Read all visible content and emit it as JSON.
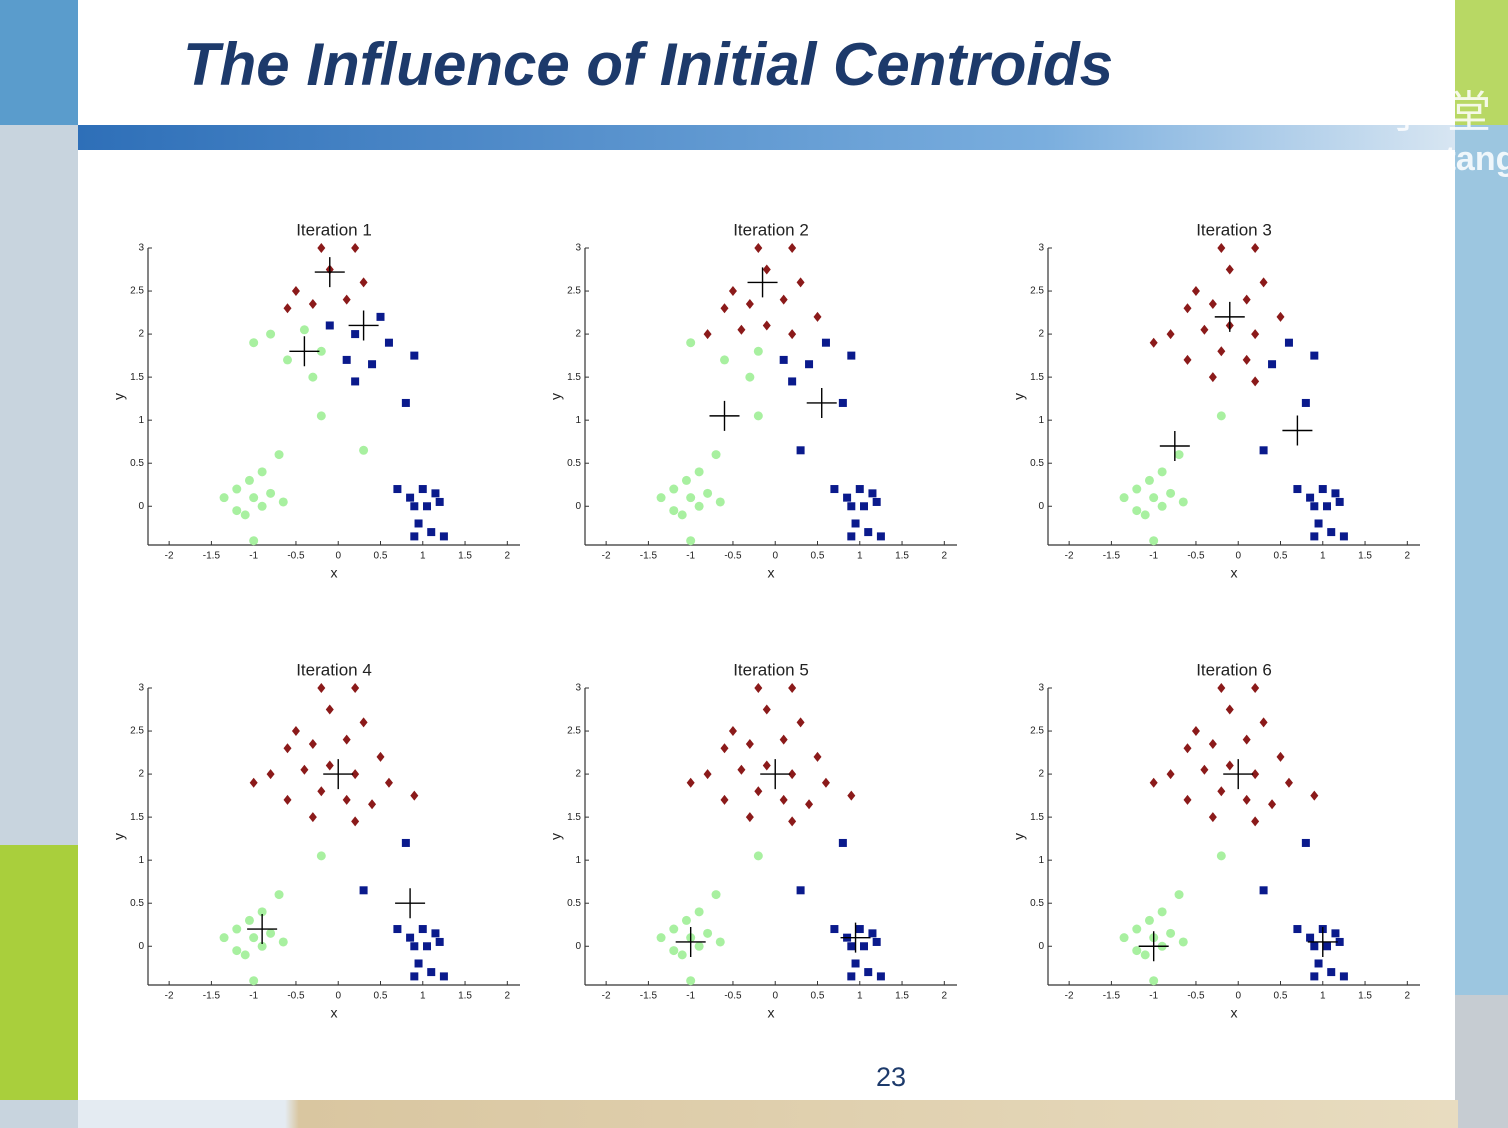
{
  "slide": {
    "title": "The Influence of Initial Centroids",
    "page_number": "23",
    "watermark": [
      "学堂",
      "xuetang"
    ]
  },
  "chart_data": [
    {
      "type": "scatter",
      "title": "Iteration 1",
      "xlabel": "x",
      "ylabel": "y",
      "xlim": [
        -2.25,
        2.15
      ],
      "ylim": [
        -0.45,
        3
      ],
      "xticks": [
        -2,
        -1.5,
        -1,
        -0.5,
        0,
        0.5,
        1,
        1.5,
        2
      ],
      "yticks": [
        0,
        0.5,
        1,
        1.5,
        2,
        2.5,
        3
      ],
      "series": [
        {
          "color": "#8b1a1a",
          "marker": "diamond",
          "x": [
            -0.5,
            -0.1,
            0.3,
            -0.6,
            -0.3,
            0.1,
            -0.2,
            0.2
          ],
          "y": [
            2.5,
            2.75,
            2.6,
            2.3,
            2.35,
            2.4,
            3.0,
            3.0
          ]
        },
        {
          "color": "#0a1a8c",
          "marker": "square",
          "x": [
            0.5,
            -0.1,
            0.2,
            0.6,
            0.1,
            0.4,
            0.9,
            0.2,
            0.8,
            0.7,
            0.85,
            1.0,
            1.15,
            0.9,
            1.05,
            1.2,
            0.95,
            1.1,
            0.9,
            1.25
          ],
          "y": [
            2.2,
            2.1,
            2.0,
            1.9,
            1.7,
            1.65,
            1.75,
            1.45,
            1.2,
            0.2,
            0.1,
            0.2,
            0.15,
            0.0,
            0.0,
            0.05,
            -0.2,
            -0.3,
            -0.35,
            -0.35
          ]
        },
        {
          "color": "#a8f0a0",
          "marker": "circle",
          "x": [
            -0.8,
            -0.4,
            -1.0,
            -0.6,
            -0.2,
            -0.3,
            -0.2,
            -1.35,
            -1.2,
            -1.05,
            -1.0,
            -1.2,
            -1.1,
            -0.9,
            -0.8,
            -1.0,
            -0.9,
            -0.7,
            -0.65,
            0.3
          ],
          "y": [
            2.0,
            2.05,
            1.9,
            1.7,
            1.8,
            1.5,
            1.05,
            0.1,
            0.2,
            0.3,
            0.1,
            -0.05,
            -0.1,
            0.0,
            0.15,
            -0.4,
            0.4,
            0.6,
            0.05,
            0.65
          ]
        },
        {
          "color": "#000000",
          "marker": "plus",
          "x": [
            -0.1,
            0.3,
            -0.4
          ],
          "y": [
            2.72,
            2.1,
            1.8
          ]
        }
      ]
    },
    {
      "type": "scatter",
      "title": "Iteration 2",
      "xlabel": "x",
      "ylabel": "y",
      "xlim": [
        -2.25,
        2.15
      ],
      "ylim": [
        -0.45,
        3
      ],
      "xticks": [
        -2,
        -1.5,
        -1,
        -0.5,
        0,
        0.5,
        1,
        1.5,
        2
      ],
      "yticks": [
        0,
        0.5,
        1,
        1.5,
        2,
        2.5,
        3
      ],
      "series": [
        {
          "color": "#8b1a1a",
          "marker": "diamond",
          "x": [
            -0.5,
            -0.1,
            0.3,
            -0.6,
            -0.3,
            0.1,
            0.5,
            -0.8,
            -0.4,
            -0.1,
            0.2,
            -0.2,
            0.2
          ],
          "y": [
            2.5,
            2.75,
            2.6,
            2.3,
            2.35,
            2.4,
            2.2,
            2.0,
            2.05,
            2.1,
            2.0,
            3.0,
            3.0
          ]
        },
        {
          "color": "#0a1a8c",
          "marker": "square",
          "x": [
            0.6,
            0.1,
            0.4,
            0.9,
            0.2,
            0.8,
            0.7,
            0.85,
            1.0,
            1.15,
            0.9,
            1.05,
            1.2,
            0.95,
            1.1,
            0.9,
            1.25,
            0.3
          ],
          "y": [
            1.9,
            1.7,
            1.65,
            1.75,
            1.45,
            1.2,
            0.2,
            0.1,
            0.2,
            0.15,
            0.0,
            0.0,
            0.05,
            -0.2,
            -0.3,
            -0.35,
            -0.35,
            0.65
          ]
        },
        {
          "color": "#a8f0a0",
          "marker": "circle",
          "x": [
            -1.0,
            -0.6,
            -0.2,
            -0.3,
            -0.2,
            -1.35,
            -1.2,
            -1.05,
            -1.0,
            -1.2,
            -1.1,
            -0.9,
            -0.8,
            -1.0,
            -0.9,
            -0.7,
            -0.65
          ],
          "y": [
            1.9,
            1.7,
            1.8,
            1.5,
            1.05,
            0.1,
            0.2,
            0.3,
            0.1,
            -0.05,
            -0.1,
            0.0,
            0.15,
            -0.4,
            0.4,
            0.6,
            0.05
          ]
        },
        {
          "color": "#000000",
          "marker": "plus",
          "x": [
            -0.15,
            0.55,
            -0.6
          ],
          "y": [
            2.6,
            1.2,
            1.05
          ]
        }
      ]
    },
    {
      "type": "scatter",
      "title": "Iteration 3",
      "xlabel": "x",
      "ylabel": "y",
      "xlim": [
        -2.25,
        2.15
      ],
      "ylim": [
        -0.45,
        3
      ],
      "xticks": [
        -2,
        -1.5,
        -1,
        -0.5,
        0,
        0.5,
        1,
        1.5,
        2
      ],
      "yticks": [
        0,
        0.5,
        1,
        1.5,
        2,
        2.5,
        3
      ],
      "series": [
        {
          "color": "#8b1a1a",
          "marker": "diamond",
          "x": [
            -0.5,
            -0.1,
            0.3,
            -0.6,
            -0.3,
            0.1,
            0.5,
            -0.8,
            -0.4,
            -0.1,
            0.2,
            -1.0,
            -0.6,
            -0.2,
            0.1,
            -0.3,
            0.2,
            -0.2,
            0.2
          ],
          "y": [
            2.5,
            2.75,
            2.6,
            2.3,
            2.35,
            2.4,
            2.2,
            2.0,
            2.05,
            2.1,
            2.0,
            1.9,
            1.7,
            1.8,
            1.7,
            1.5,
            1.45,
            3.0,
            3.0
          ]
        },
        {
          "color": "#0a1a8c",
          "marker": "square",
          "x": [
            0.6,
            0.4,
            0.9,
            0.8,
            0.7,
            0.85,
            1.0,
            1.15,
            0.9,
            1.05,
            1.2,
            0.95,
            1.1,
            0.9,
            1.25,
            0.3
          ],
          "y": [
            1.9,
            1.65,
            1.75,
            1.2,
            0.2,
            0.1,
            0.2,
            0.15,
            0.0,
            0.0,
            0.05,
            -0.2,
            -0.3,
            -0.35,
            -0.35,
            0.65
          ]
        },
        {
          "color": "#a8f0a0",
          "marker": "circle",
          "x": [
            -0.2,
            -1.35,
            -1.2,
            -1.05,
            -1.0,
            -1.2,
            -1.1,
            -0.9,
            -0.8,
            -1.0,
            -0.9,
            -0.7,
            -0.65
          ],
          "y": [
            1.05,
            0.1,
            0.2,
            0.3,
            0.1,
            -0.05,
            -0.1,
            0.0,
            0.15,
            -0.4,
            0.4,
            0.6,
            0.05
          ]
        },
        {
          "color": "#000000",
          "marker": "plus",
          "x": [
            -0.1,
            0.7,
            -0.75
          ],
          "y": [
            2.2,
            0.88,
            0.7
          ]
        }
      ]
    },
    {
      "type": "scatter",
      "title": "Iteration 4",
      "xlabel": "x",
      "ylabel": "y",
      "xlim": [
        -2.25,
        2.15
      ],
      "ylim": [
        -0.45,
        3
      ],
      "xticks": [
        -2,
        -1.5,
        -1,
        -0.5,
        0,
        0.5,
        1,
        1.5,
        2
      ],
      "yticks": [
        0,
        0.5,
        1,
        1.5,
        2,
        2.5,
        3
      ],
      "series": [
        {
          "color": "#8b1a1a",
          "marker": "diamond",
          "x": [
            -0.5,
            -0.1,
            0.3,
            -0.6,
            -0.3,
            0.1,
            0.5,
            -0.8,
            -0.4,
            -0.1,
            0.2,
            0.6,
            -1.0,
            -0.6,
            -0.2,
            0.1,
            0.4,
            0.9,
            -0.3,
            0.2,
            -0.2,
            0.2
          ],
          "y": [
            2.5,
            2.75,
            2.6,
            2.3,
            2.35,
            2.4,
            2.2,
            2.0,
            2.05,
            2.1,
            2.0,
            1.9,
            1.9,
            1.7,
            1.8,
            1.7,
            1.65,
            1.75,
            1.5,
            1.45,
            3.0,
            3.0
          ]
        },
        {
          "color": "#0a1a8c",
          "marker": "square",
          "x": [
            0.8,
            0.7,
            0.85,
            1.0,
            1.15,
            0.9,
            1.05,
            1.2,
            0.95,
            1.1,
            0.9,
            1.25,
            0.3
          ],
          "y": [
            1.2,
            0.2,
            0.1,
            0.2,
            0.15,
            0.0,
            0.0,
            0.05,
            -0.2,
            -0.3,
            -0.35,
            -0.35,
            0.65
          ]
        },
        {
          "color": "#a8f0a0",
          "marker": "circle",
          "x": [
            -0.2,
            -1.35,
            -1.2,
            -1.05,
            -1.0,
            -1.2,
            -1.1,
            -0.9,
            -0.8,
            -1.0,
            -0.9,
            -0.7,
            -0.65
          ],
          "y": [
            1.05,
            0.1,
            0.2,
            0.3,
            0.1,
            -0.05,
            -0.1,
            0.0,
            0.15,
            -0.4,
            0.4,
            0.6,
            0.05
          ]
        },
        {
          "color": "#000000",
          "marker": "plus",
          "x": [
            0.0,
            0.85,
            -0.9
          ],
          "y": [
            2.0,
            0.5,
            0.2
          ]
        }
      ]
    },
    {
      "type": "scatter",
      "title": "Iteration 5",
      "xlabel": "x",
      "ylabel": "y",
      "xlim": [
        -2.25,
        2.15
      ],
      "ylim": [
        -0.45,
        3
      ],
      "xticks": [
        -2,
        -1.5,
        -1,
        -0.5,
        0,
        0.5,
        1,
        1.5,
        2
      ],
      "yticks": [
        0,
        0.5,
        1,
        1.5,
        2,
        2.5,
        3
      ],
      "series": [
        {
          "color": "#8b1a1a",
          "marker": "diamond",
          "x": [
            -0.5,
            -0.1,
            0.3,
            -0.6,
            -0.3,
            0.1,
            0.5,
            -0.8,
            -0.4,
            -0.1,
            0.2,
            0.6,
            -1.0,
            -0.6,
            -0.2,
            0.1,
            0.4,
            0.9,
            -0.3,
            0.2,
            -0.2,
            0.2
          ],
          "y": [
            2.5,
            2.75,
            2.6,
            2.3,
            2.35,
            2.4,
            2.2,
            2.0,
            2.05,
            2.1,
            2.0,
            1.9,
            1.9,
            1.7,
            1.8,
            1.7,
            1.65,
            1.75,
            1.5,
            1.45,
            3.0,
            3.0
          ]
        },
        {
          "color": "#0a1a8c",
          "marker": "square",
          "x": [
            0.8,
            0.7,
            0.85,
            1.0,
            1.15,
            0.9,
            1.05,
            1.2,
            0.95,
            1.1,
            0.9,
            1.25,
            0.3
          ],
          "y": [
            1.2,
            0.2,
            0.1,
            0.2,
            0.15,
            0.0,
            0.0,
            0.05,
            -0.2,
            -0.3,
            -0.35,
            -0.35,
            0.65
          ]
        },
        {
          "color": "#a8f0a0",
          "marker": "circle",
          "x": [
            -0.2,
            -1.35,
            -1.2,
            -1.05,
            -1.0,
            -1.2,
            -1.1,
            -0.9,
            -0.8,
            -1.0,
            -0.9,
            -0.7,
            -0.65
          ],
          "y": [
            1.05,
            0.1,
            0.2,
            0.3,
            0.1,
            -0.05,
            -0.1,
            0.0,
            0.15,
            -0.4,
            0.4,
            0.6,
            0.05
          ]
        },
        {
          "color": "#000000",
          "marker": "plus",
          "x": [
            0.0,
            0.95,
            -1.0
          ],
          "y": [
            2.0,
            0.1,
            0.05
          ]
        }
      ]
    },
    {
      "type": "scatter",
      "title": "Iteration 6",
      "xlabel": "x",
      "ylabel": "y",
      "xlim": [
        -2.25,
        2.15
      ],
      "ylim": [
        -0.45,
        3
      ],
      "xticks": [
        -2,
        -1.5,
        -1,
        -0.5,
        0,
        0.5,
        1,
        1.5,
        2
      ],
      "yticks": [
        0,
        0.5,
        1,
        1.5,
        2,
        2.5,
        3
      ],
      "series": [
        {
          "color": "#8b1a1a",
          "marker": "diamond",
          "x": [
            -0.5,
            -0.1,
            0.3,
            -0.6,
            -0.3,
            0.1,
            0.5,
            -0.8,
            -0.4,
            -0.1,
            0.2,
            0.6,
            -1.0,
            -0.6,
            -0.2,
            0.1,
            0.4,
            0.9,
            -0.3,
            0.2,
            -0.2,
            0.2
          ],
          "y": [
            2.5,
            2.75,
            2.6,
            2.3,
            2.35,
            2.4,
            2.2,
            2.0,
            2.05,
            2.1,
            2.0,
            1.9,
            1.9,
            1.7,
            1.8,
            1.7,
            1.65,
            1.75,
            1.5,
            1.45,
            3.0,
            3.0
          ]
        },
        {
          "color": "#0a1a8c",
          "marker": "square",
          "x": [
            0.8,
            0.7,
            0.85,
            1.0,
            1.15,
            0.9,
            1.05,
            1.2,
            0.95,
            1.1,
            0.9,
            1.25,
            0.3
          ],
          "y": [
            1.2,
            0.2,
            0.1,
            0.2,
            0.15,
            0.0,
            0.0,
            0.05,
            -0.2,
            -0.3,
            -0.35,
            -0.35,
            0.65
          ]
        },
        {
          "color": "#a8f0a0",
          "marker": "circle",
          "x": [
            -0.2,
            -1.35,
            -1.2,
            -1.05,
            -1.0,
            -1.2,
            -1.1,
            -0.9,
            -0.8,
            -1.0,
            -0.9,
            -0.7,
            -0.65
          ],
          "y": [
            1.05,
            0.1,
            0.2,
            0.3,
            0.1,
            -0.05,
            -0.1,
            0.0,
            0.15,
            -0.4,
            0.4,
            0.6,
            0.05
          ]
        },
        {
          "color": "#000000",
          "marker": "plus",
          "x": [
            0.0,
            1.0,
            -1.0
          ],
          "y": [
            2.0,
            0.05,
            0.0
          ]
        }
      ]
    }
  ]
}
